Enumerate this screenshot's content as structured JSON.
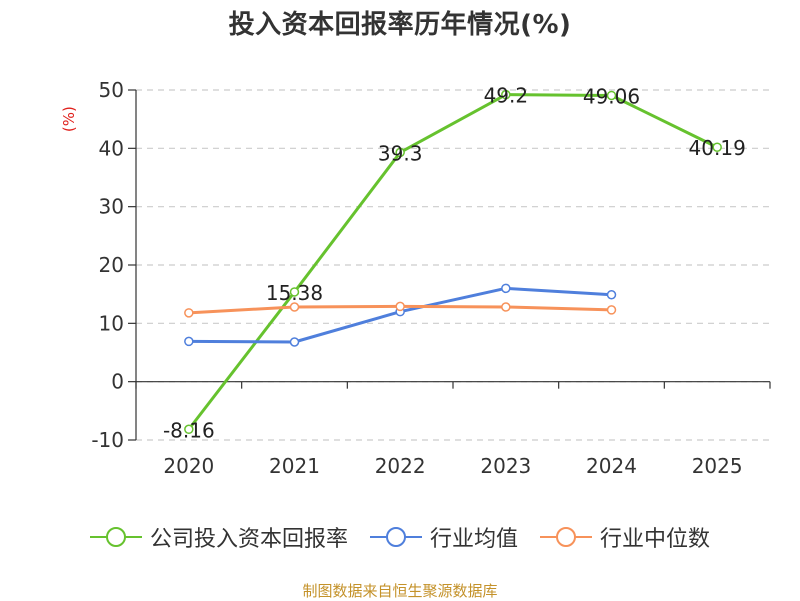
{
  "title": "投入资本回报率历年情况(%)",
  "unit_label": "(%)",
  "source": "制图数据来自恒生聚源数据库",
  "colors": {
    "company": "#66c22e",
    "industry_avg": "#4f7fdc",
    "industry_median": "#f7925a",
    "unit": "#e0201c",
    "source": "#c4922a"
  },
  "chart_data": {
    "type": "line",
    "title": "投入资本回报率历年情况(%)",
    "ylabel": "(%)",
    "categories": [
      "2020",
      "2021",
      "2022",
      "2023",
      "2024",
      "2025"
    ],
    "ylim": [
      -10,
      50
    ],
    "yticks": [
      "-10",
      "0",
      "10",
      "20",
      "30",
      "40",
      "50"
    ],
    "grid": true,
    "legend_position": "bottom",
    "series": [
      {
        "name": "公司投入资本回报率",
        "color_key": "company",
        "values": [
          -8.16,
          15.38,
          39.3,
          49.2,
          49.06,
          40.19
        ],
        "labels": [
          "-8.16",
          "15.38",
          "39.3",
          "49.2",
          "49.06",
          "40.19"
        ]
      },
      {
        "name": "行业均值",
        "color_key": "industry_avg",
        "values": [
          6.9,
          6.8,
          12.0,
          16.0,
          14.9,
          null
        ]
      },
      {
        "name": "行业中位数",
        "color_key": "industry_median",
        "values": [
          11.8,
          12.8,
          12.9,
          12.8,
          12.3,
          null
        ]
      }
    ]
  }
}
